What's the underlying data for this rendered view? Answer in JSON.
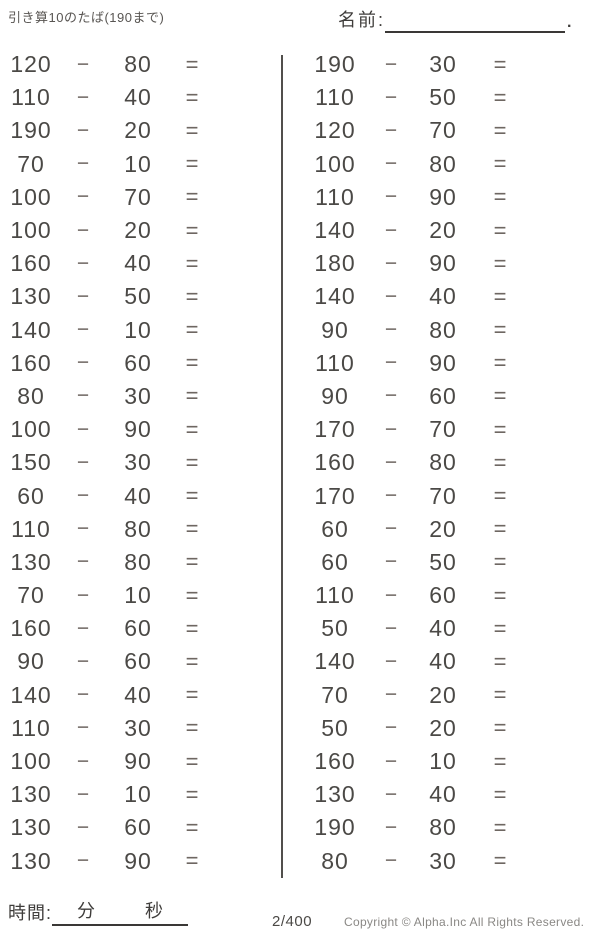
{
  "header": {
    "title": "引き算10のたば(190まで)",
    "name_label": "名前:",
    "name_period": "."
  },
  "worksheet": {
    "operator": "−",
    "equals_sign": "=",
    "columns": {
      "left": [
        {
          "a": 120,
          "b": 80
        },
        {
          "a": 110,
          "b": 40
        },
        {
          "a": 190,
          "b": 20
        },
        {
          "a": 70,
          "b": 10
        },
        {
          "a": 100,
          "b": 70
        },
        {
          "a": 100,
          "b": 20
        },
        {
          "a": 160,
          "b": 40
        },
        {
          "a": 130,
          "b": 50
        },
        {
          "a": 140,
          "b": 10
        },
        {
          "a": 160,
          "b": 60
        },
        {
          "a": 80,
          "b": 30
        },
        {
          "a": 100,
          "b": 90
        },
        {
          "a": 150,
          "b": 30
        },
        {
          "a": 60,
          "b": 40
        },
        {
          "a": 110,
          "b": 80
        },
        {
          "a": 130,
          "b": 80
        },
        {
          "a": 70,
          "b": 10
        },
        {
          "a": 160,
          "b": 60
        },
        {
          "a": 90,
          "b": 60
        },
        {
          "a": 140,
          "b": 40
        },
        {
          "a": 110,
          "b": 30
        },
        {
          "a": 100,
          "b": 90
        },
        {
          "a": 130,
          "b": 10
        },
        {
          "a": 130,
          "b": 60
        },
        {
          "a": 130,
          "b": 90
        }
      ],
      "right": [
        {
          "a": 190,
          "b": 30
        },
        {
          "a": 110,
          "b": 50
        },
        {
          "a": 120,
          "b": 70
        },
        {
          "a": 100,
          "b": 80
        },
        {
          "a": 110,
          "b": 90
        },
        {
          "a": 140,
          "b": 20
        },
        {
          "a": 180,
          "b": 90
        },
        {
          "a": 140,
          "b": 40
        },
        {
          "a": 90,
          "b": 80
        },
        {
          "a": 110,
          "b": 90
        },
        {
          "a": 90,
          "b": 60
        },
        {
          "a": 170,
          "b": 70
        },
        {
          "a": 160,
          "b": 80
        },
        {
          "a": 170,
          "b": 70
        },
        {
          "a": 60,
          "b": 20
        },
        {
          "a": 60,
          "b": 50
        },
        {
          "a": 110,
          "b": 60
        },
        {
          "a": 50,
          "b": 40
        },
        {
          "a": 140,
          "b": 40
        },
        {
          "a": 70,
          "b": 20
        },
        {
          "a": 50,
          "b": 20
        },
        {
          "a": 160,
          "b": 10
        },
        {
          "a": 130,
          "b": 40
        },
        {
          "a": 190,
          "b": 80
        },
        {
          "a": 80,
          "b": 30
        }
      ]
    }
  },
  "footer": {
    "time_label": "時間:",
    "minutes_label": "分",
    "seconds_label": "秒",
    "page_number": "2/400",
    "copyright": "Copyright ©  Alpha.Inc All Rights Reserved."
  },
  "colors": {
    "ink": "#4b4946",
    "operator_ink": "#6e6762",
    "copyright_gray": "#8a8885",
    "background": "#ffffff"
  }
}
